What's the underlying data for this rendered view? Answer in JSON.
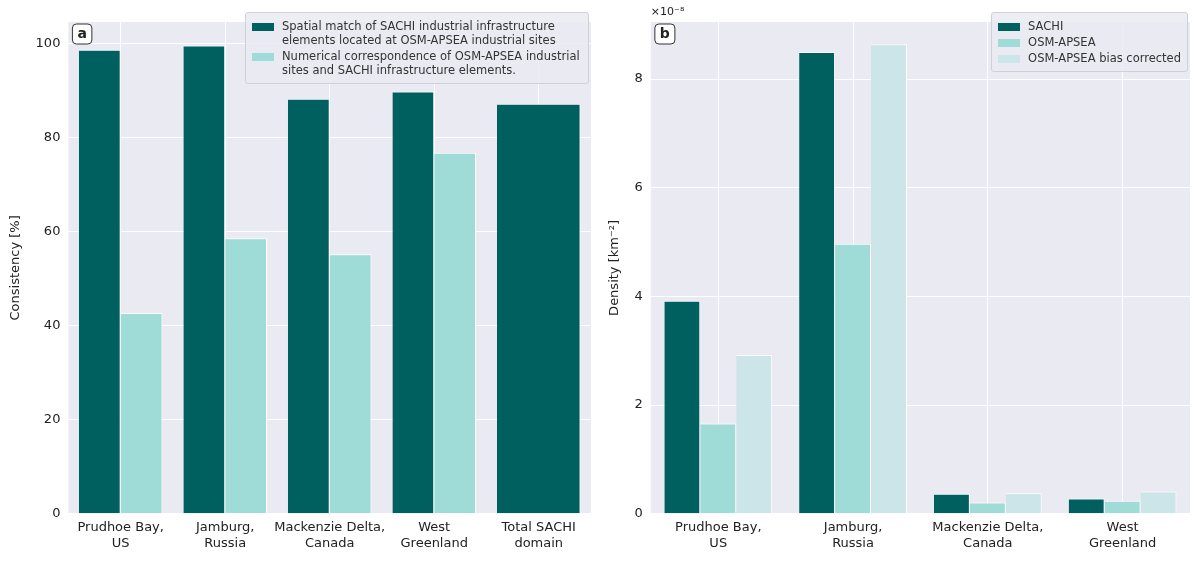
{
  "chart_data": [
    {
      "type": "bar",
      "ylabel": "Consistency [%]",
      "categories": [
        "Prudhoe Bay,\nUS",
        "Jamburg,\nRussia",
        "Mackenzie Delta,\nCanada",
        "West\nGreenland",
        "Total SACHI\ndomain"
      ],
      "series": [
        {
          "name": "Spatial match of SACHI industrial infrastructure elements located at OSM-APSEA industrial sites",
          "color": "#005f5f",
          "values": [
            98.7,
            99.6,
            88.3,
            89.8,
            87.2
          ]
        },
        {
          "name": "Numerical correspondence of OSM-APSEA industrial sites and SACHI infrastructure elements.",
          "color": "#9fdcd8",
          "values": [
            42.7,
            58.6,
            55.2,
            76.8,
            null
          ]
        }
      ],
      "ylim": [
        0,
        104.6
      ],
      "yticks": [
        0,
        20,
        40,
        60,
        80,
        100
      ],
      "grid": true,
      "legend": "top right",
      "annotations": [
        "a"
      ]
    },
    {
      "type": "bar",
      "ylabel": "Density [km⁻²]",
      "categories": [
        "Prudhoe Bay,\nUS",
        "Jamburg,\nRussia",
        "Mackenzie Delta,\nCanada",
        "West\nGreenland"
      ],
      "series": [
        {
          "name": "SACHI",
          "color": "#005f5f",
          "values": [
            3.92,
            8.5,
            0.37,
            0.28
          ]
        },
        {
          "name": "OSM-APSEA",
          "color": "#9fdcd8",
          "values": [
            1.66,
            4.97,
            0.21,
            0.24
          ]
        },
        {
          "name": "OSM-APSEA bias corrected",
          "color": "#cce5e8",
          "values": [
            2.92,
            8.64,
            0.38,
            0.41
          ]
        }
      ],
      "ylim": [
        0,
        9.05
      ],
      "yticks": [
        0,
        2,
        4,
        6,
        8
      ],
      "grid": true,
      "legend": "top right",
      "annotations": [
        "b",
        "×10⁻⁸"
      ]
    }
  ]
}
